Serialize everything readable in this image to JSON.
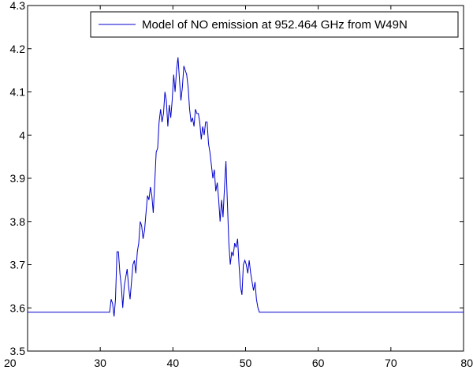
{
  "chart_data": {
    "type": "line",
    "title": "",
    "xlabel": "",
    "ylabel": "",
    "xlim": [
      20,
      80
    ],
    "ylim": [
      3.5,
      4.3
    ],
    "xticks": [
      20,
      30,
      40,
      50,
      60,
      70,
      80
    ],
    "yticks": [
      3.5,
      3.6,
      3.7,
      3.8,
      3.9,
      4.0,
      4.1,
      4.2,
      4.3
    ],
    "grid": false,
    "legend_position": "top-right",
    "colors": {
      "series": "#0000cc",
      "axes": "#000000"
    },
    "series": [
      {
        "name": "Model of NO emission at 952.464 GHz from W49N",
        "x": [
          20,
          31.3,
          31.5,
          31.7,
          31.9,
          32.1,
          32.3,
          32.5,
          32.7,
          32.9,
          33.1,
          33.3,
          33.5,
          33.7,
          33.9,
          34.1,
          34.3,
          34.5,
          34.7,
          34.9,
          35.1,
          35.3,
          35.5,
          35.7,
          35.9,
          36.1,
          36.3,
          36.5,
          36.7,
          36.9,
          37.1,
          37.3,
          37.5,
          37.7,
          37.9,
          38.1,
          38.3,
          38.5,
          38.7,
          38.9,
          39.1,
          39.3,
          39.5,
          39.7,
          39.9,
          40.1,
          40.3,
          40.5,
          40.7,
          40.9,
          41.1,
          41.3,
          41.5,
          41.7,
          41.9,
          42.1,
          42.3,
          42.5,
          42.7,
          42.9,
          43.1,
          43.3,
          43.5,
          43.7,
          43.9,
          44.1,
          44.3,
          44.5,
          44.7,
          44.9,
          45.1,
          45.3,
          45.5,
          45.7,
          45.9,
          46.1,
          46.3,
          46.5,
          46.7,
          46.9,
          47.1,
          47.3,
          47.5,
          47.7,
          47.9,
          48.1,
          48.3,
          48.5,
          48.7,
          48.9,
          49.1,
          49.3,
          49.5,
          49.7,
          49.9,
          50.1,
          50.3,
          50.5,
          50.7,
          50.9,
          51.1,
          51.3,
          51.5,
          51.7,
          51.9,
          52.1,
          52.3,
          52.5,
          52.7,
          52.9,
          53.1,
          53.3,
          53.5,
          53.7,
          53.9,
          54.1,
          54.3,
          54.5,
          54.7,
          80
        ],
        "y": [
          3.59,
          3.59,
          3.62,
          3.61,
          3.58,
          3.62,
          3.73,
          3.73,
          3.68,
          3.65,
          3.6,
          3.65,
          3.67,
          3.69,
          3.65,
          3.62,
          3.66,
          3.7,
          3.71,
          3.68,
          3.73,
          3.75,
          3.8,
          3.79,
          3.76,
          3.78,
          3.82,
          3.86,
          3.85,
          3.88,
          3.86,
          3.82,
          3.89,
          3.96,
          3.97,
          4.03,
          4.06,
          4.03,
          4.05,
          4.1,
          4.08,
          4.02,
          4.07,
          4.04,
          4.08,
          4.14,
          4.1,
          4.15,
          4.18,
          4.13,
          4.08,
          4.11,
          4.16,
          4.15,
          4.14,
          4.11,
          4.06,
          4.03,
          4.04,
          4.02,
          4.06,
          4.05,
          4.05,
          4.03,
          3.99,
          4.02,
          4.0,
          4.03,
          4.03,
          3.98,
          3.96,
          3.93,
          3.9,
          3.92,
          3.87,
          3.89,
          3.85,
          3.8,
          3.85,
          3.81,
          3.88,
          3.94,
          3.84,
          3.75,
          3.7,
          3.73,
          3.72,
          3.75,
          3.74,
          3.76,
          3.7,
          3.65,
          3.63,
          3.7,
          3.71,
          3.7,
          3.68,
          3.71,
          3.68,
          3.66,
          3.64,
          3.66,
          3.62,
          3.6,
          3.59,
          3.59,
          3.59,
          3.59,
          3.59,
          3.59,
          3.59,
          3.59,
          3.59,
          3.59,
          3.59,
          3.59,
          3.59,
          3.59,
          3.59,
          3.59
        ]
      }
    ]
  }
}
